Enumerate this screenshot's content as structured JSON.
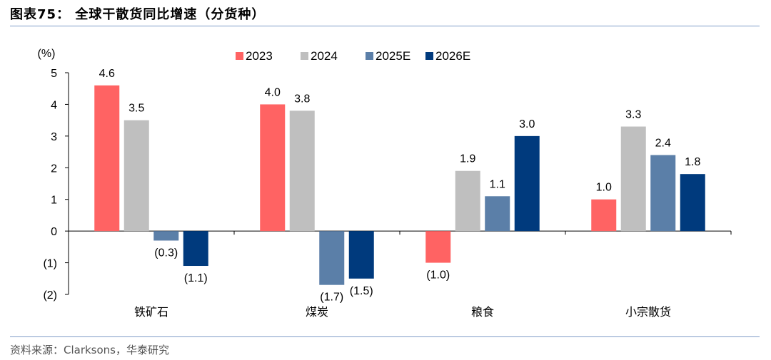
{
  "title": "图表75：  全球干散货同比增速（分货种）",
  "source": "资料来源：Clarksons，华泰研究",
  "chart_data": {
    "type": "bar",
    "ylabel": "(%)",
    "ylim": [
      -2,
      5
    ],
    "yticks": [
      5,
      4,
      3,
      2,
      1,
      0,
      -1,
      -2
    ],
    "ytick_labels": [
      "5",
      "4",
      "3",
      "2",
      "1",
      "0",
      "(1)",
      "(2)"
    ],
    "categories": [
      "铁矿石",
      "煤炭",
      "粮食",
      "小宗散货"
    ],
    "legend_position": "top-center",
    "grid": false,
    "series": [
      {
        "name": "2023",
        "color": "#ff6363",
        "values": [
          4.6,
          4.0,
          -1.0,
          1.0
        ],
        "labels": [
          "4.6",
          "4.0",
          "(1.0)",
          "1.0"
        ]
      },
      {
        "name": "2024",
        "color": "#bfbfbf",
        "values": [
          3.5,
          3.8,
          1.9,
          3.3
        ],
        "labels": [
          "3.5",
          "3.8",
          "1.9",
          "3.3"
        ]
      },
      {
        "name": "2025E",
        "color": "#5b7fa8",
        "values": [
          -0.3,
          -1.7,
          1.1,
          2.4
        ],
        "labels": [
          "(0.3)",
          "(1.7)",
          "1.1",
          "2.4"
        ]
      },
      {
        "name": "2026E",
        "color": "#003a7d",
        "values": [
          -1.1,
          -1.5,
          3.0,
          1.8
        ],
        "labels": [
          "(1.1)",
          "(1.5)",
          "3.0",
          "1.8"
        ]
      }
    ]
  }
}
